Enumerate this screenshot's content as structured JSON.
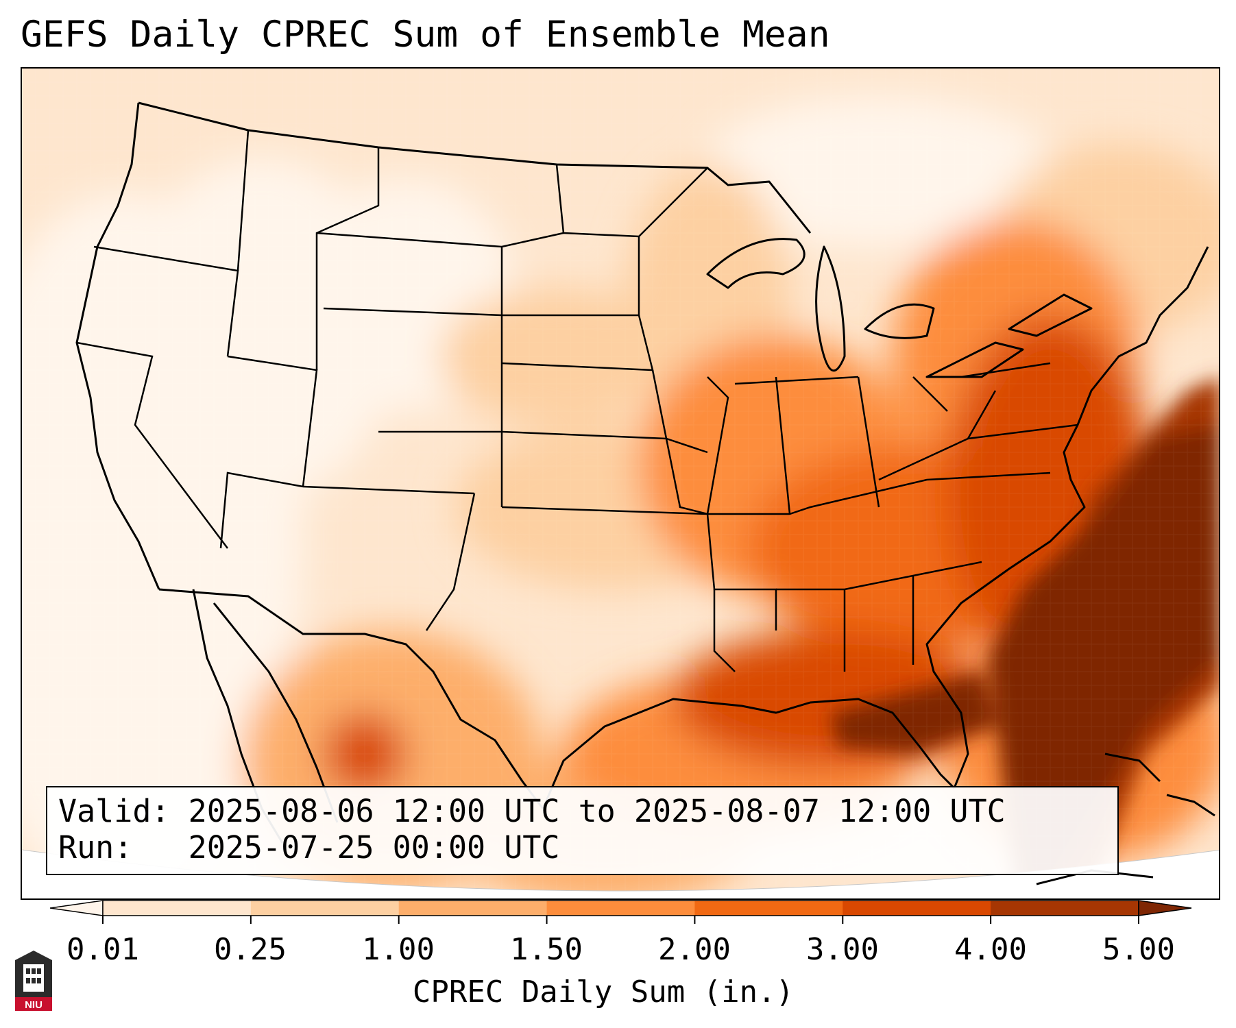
{
  "title": "GEFS Daily CPREC Sum of Ensemble Mean",
  "info": {
    "valid_line": "Valid: 2025-08-06 12:00 UTC to 2025-08-07 12:00 UTC",
    "run_line": "Run:   2025-07-25 00:00 UTC"
  },
  "colorbar": {
    "label": "CPREC Daily Sum (in.)",
    "ticks": [
      "0.01",
      "0.25",
      "1.00",
      "1.50",
      "2.00",
      "3.00",
      "4.00",
      "5.00"
    ],
    "colors": [
      "#fff5eb",
      "#fee6ce",
      "#fdd0a2",
      "#fdae6b",
      "#fd8d3c",
      "#f16913",
      "#d94801",
      "#a63603",
      "#7f2704"
    ],
    "extend": "both"
  },
  "map": {
    "variable": "CPREC daily sum of ensemble mean",
    "units": "in.",
    "heaviest_precip_region": "Southeast US / Gulf Coast / Atlantic offshore",
    "light_precip_region": "Western US / Pacific"
  },
  "logo": {
    "text": "NIU"
  }
}
